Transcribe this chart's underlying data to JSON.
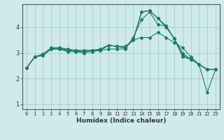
{
  "xlabel": "Humidex (Indice chaleur)",
  "bg_color": "#ceeaea",
  "line_color": "#1a7a6e",
  "grid_color": "#aacccc",
  "axis_color": "#555555",
  "xlim": [
    -0.5,
    23.5
  ],
  "ylim": [
    0.8,
    4.9
  ],
  "yticks": [
    1,
    2,
    3,
    4
  ],
  "xticks": [
    0,
    1,
    2,
    3,
    4,
    5,
    6,
    7,
    8,
    9,
    10,
    11,
    12,
    13,
    14,
    15,
    16,
    17,
    18,
    19,
    20,
    21,
    22,
    23
  ],
  "series": [
    [
      2.4,
      2.85,
      2.95,
      3.2,
      3.2,
      3.15,
      3.1,
      3.1,
      3.1,
      3.15,
      3.3,
      3.25,
      3.25,
      3.5,
      3.6,
      3.6,
      3.8,
      3.6,
      3.4,
      3.2,
      2.85,
      2.55,
      2.35,
      2.35
    ],
    [
      2.4,
      2.85,
      2.9,
      3.15,
      3.15,
      3.05,
      3.05,
      3.0,
      3.05,
      3.1,
      3.15,
      3.15,
      3.15,
      3.6,
      4.3,
      4.6,
      4.1,
      4.05,
      3.55,
      2.9,
      2.75,
      2.55,
      1.45,
      2.35
    ],
    [
      2.4,
      2.85,
      2.9,
      3.15,
      3.15,
      3.1,
      3.05,
      3.05,
      3.1,
      3.1,
      3.3,
      3.25,
      3.2,
      3.5,
      4.6,
      4.65,
      4.35,
      4.05,
      3.55,
      3.0,
      2.75,
      2.55,
      2.35,
      2.35
    ],
    [
      2.4,
      2.85,
      2.9,
      3.15,
      3.2,
      3.1,
      3.1,
      3.05,
      3.1,
      3.1,
      3.3,
      3.25,
      3.2,
      3.5,
      4.6,
      4.65,
      4.35,
      4.0,
      3.55,
      2.85,
      2.75,
      2.55,
      2.35,
      2.35
    ]
  ]
}
